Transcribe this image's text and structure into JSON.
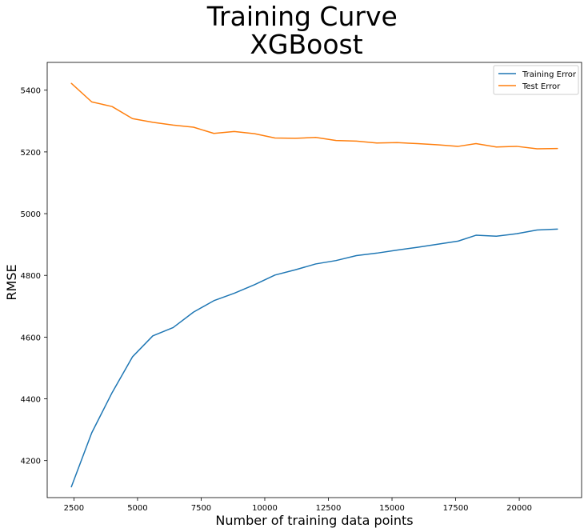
{
  "chart_data": {
    "type": "line",
    "title": "Training Curve\nXGBoost",
    "xlabel": "Number of training data points",
    "ylabel": "RMSE",
    "xlim": [
      1450,
      22450
    ],
    "ylim": [
      4080,
      5490
    ],
    "xticks": [
      2500,
      5000,
      7500,
      10000,
      12500,
      15000,
      17500,
      20000
    ],
    "yticks": [
      4200,
      4400,
      4600,
      4800,
      5000,
      5200,
      5400
    ],
    "grid": false,
    "legend_position": "top-right",
    "x": [
      2400,
      3200,
      4000,
      4800,
      5600,
      6400,
      7200,
      8000,
      8800,
      9600,
      10400,
      11200,
      12000,
      12800,
      13600,
      14400,
      15200,
      16000,
      16800,
      17600,
      18300,
      19100,
      19900,
      20700,
      21500
    ],
    "series": [
      {
        "name": "Training Error",
        "color": "#1f77b4",
        "values": [
          4115,
          4290,
          4420,
          4536,
          4604,
          4631,
          4681,
          4718,
          4742,
          4770,
          4801,
          4818,
          4837,
          4848,
          4864,
          4872,
          4882,
          4891,
          4901,
          4911,
          4930,
          4927,
          4935,
          4947,
          4950
        ]
      },
      {
        "name": "Test Error",
        "color": "#ff7f0e",
        "values": [
          5422,
          5362,
          5347,
          5308,
          5296,
          5287,
          5280,
          5260,
          5266,
          5259,
          5245,
          5244,
          5247,
          5237,
          5235,
          5229,
          5230,
          5227,
          5223,
          5218,
          5227,
          5216,
          5218,
          5210,
          5211
        ]
      }
    ]
  }
}
